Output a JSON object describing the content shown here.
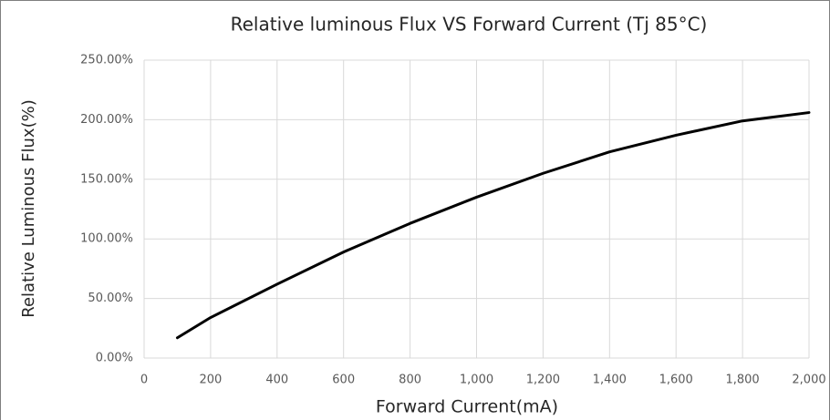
{
  "chart_data": {
    "type": "line",
    "title": "Relative luminous Flux VS Forward Current (Tj 85°C)",
    "x_label": "Forward Current(mA)",
    "y_label": "Relative Luminous Flux(%)",
    "series": [
      {
        "name": "Relative Luminous Flux",
        "color": "#000000",
        "x": [
          100,
          200,
          400,
          600,
          800,
          1000,
          1200,
          1400,
          1600,
          1800,
          2000
        ],
        "values": [
          17,
          34,
          62,
          89,
          113,
          135,
          155,
          173,
          187,
          199,
          206
        ]
      }
    ],
    "xlim": [
      0,
      2000
    ],
    "xticks": [
      0,
      200,
      400,
      600,
      800,
      {
        "value": 1000,
        "label": "1,000"
      },
      {
        "value": 1200,
        "label": "1,200"
      },
      {
        "value": 1400,
        "label": "1,400"
      },
      {
        "value": 1600,
        "label": "1,600"
      },
      {
        "value": 1800,
        "label": "1,800"
      },
      {
        "value": 2000,
        "label": "2,000"
      }
    ],
    "ylim": [
      0,
      250
    ],
    "yticks": [
      {
        "value": 0,
        "label": "0.00%"
      },
      {
        "value": 50,
        "label": "50.00%"
      },
      {
        "value": 100,
        "label": "100.00%"
      },
      {
        "value": 150,
        "label": "150.00%"
      },
      {
        "value": 200,
        "label": "200.00%"
      },
      {
        "value": 250,
        "label": "250.00%"
      }
    ],
    "grid": true
  }
}
